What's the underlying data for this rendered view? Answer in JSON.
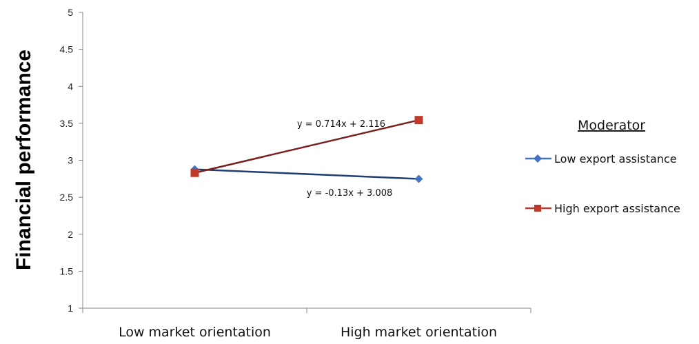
{
  "chart_data": {
    "type": "line",
    "ylabel": "Financial performance",
    "xlabel": "",
    "categories": [
      "Low market orientation",
      "High market orientation"
    ],
    "ylim": [
      1,
      5
    ],
    "yticks": [
      "1",
      "1.5",
      "2",
      "2.5",
      "3",
      "3.5",
      "4",
      "4.5",
      "5"
    ],
    "grid": false,
    "legend": {
      "title": "Moderator",
      "position": "right"
    },
    "series": [
      {
        "name": "Low export assistance",
        "values": [
          2.878,
          2.748
        ],
        "color": "#4472C4",
        "line_color": "#1F3F73",
        "marker": "diamond",
        "equation": "y = -0.13x + 3.008"
      },
      {
        "name": "High export assistance",
        "values": [
          2.83,
          3.544
        ],
        "color": "#C0392B",
        "line_color": "#7A1F1F",
        "marker": "square",
        "equation": "y = 0.714x + 2.116"
      }
    ]
  }
}
